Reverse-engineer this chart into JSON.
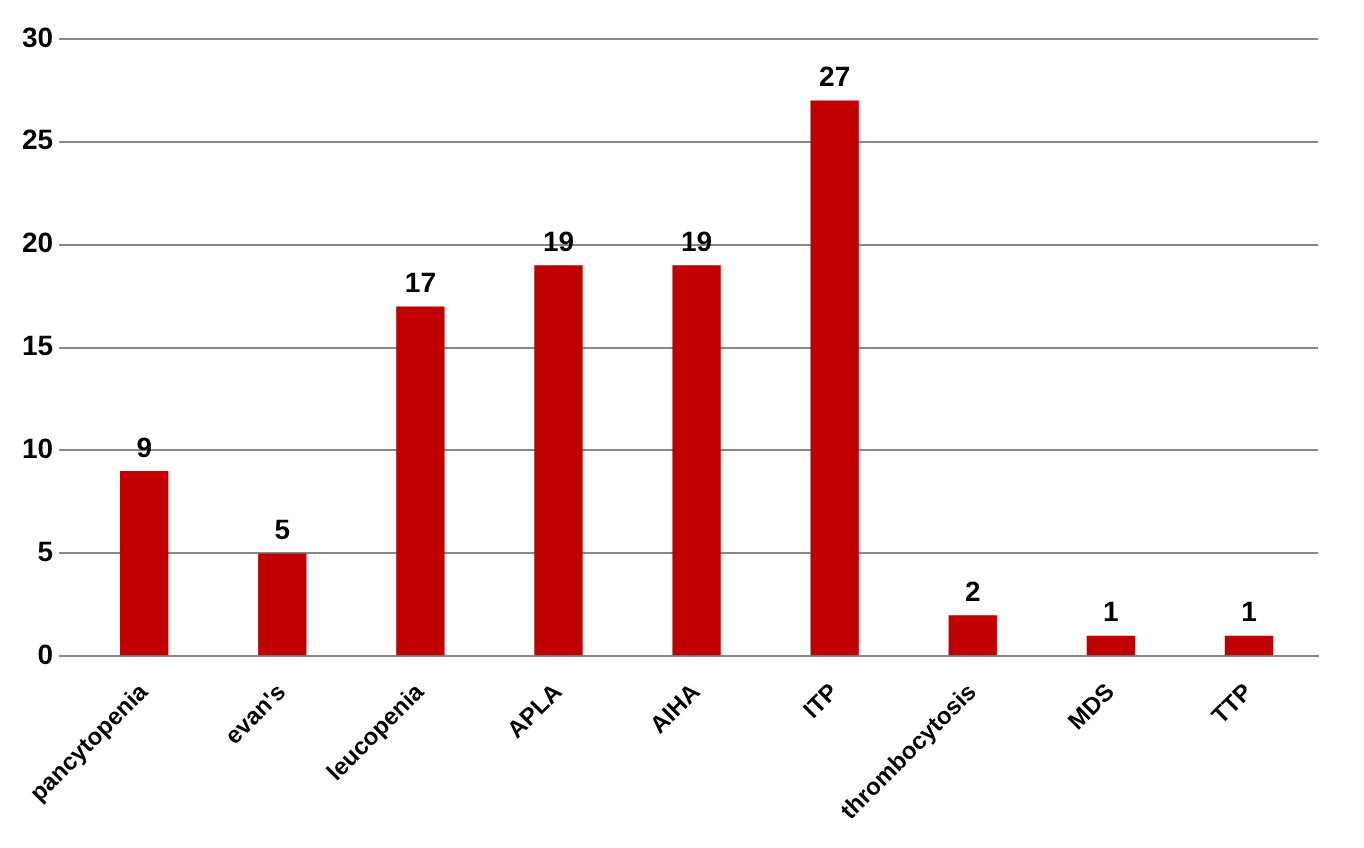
{
  "chart_data": {
    "type": "bar",
    "categories": [
      "pancytopenia",
      "evan's",
      "leucopenia",
      "APLA",
      "AIHA",
      "ITP",
      "thrombocytosis",
      "MDS",
      "TTP"
    ],
    "values": [
      9,
      5,
      17,
      19,
      19,
      27,
      2,
      1,
      1
    ],
    "color": "#c00000",
    "ylim": [
      0,
      30
    ],
    "yticks": [
      0,
      5,
      10,
      15,
      20,
      25,
      30
    ],
    "grid": "y",
    "data_labels": true,
    "legend": false
  }
}
